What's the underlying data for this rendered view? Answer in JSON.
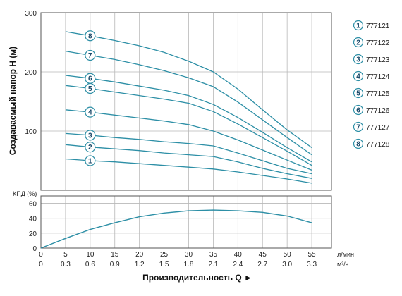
{
  "colors": {
    "curve": "#2d8fa6",
    "grid": "#b8b8b8",
    "frame": "#555555",
    "marker_ring": "#2d8fa6"
  },
  "chart_data": [
    {
      "type": "line",
      "ylabel": "Создаваемый напор H (м)",
      "x_unit": "л/мин",
      "xlim": [
        0,
        59
      ],
      "ylim": [
        0,
        300
      ],
      "x_ticks": [
        5,
        10,
        15,
        20,
        25,
        30,
        35,
        40,
        45,
        50,
        55
      ],
      "y_ticks": [
        100,
        200,
        300
      ],
      "grid": true,
      "x": [
        5,
        10,
        15,
        20,
        25,
        30,
        35,
        40,
        45,
        50,
        55
      ],
      "series": [
        {
          "name": "1",
          "values": [
            53,
            50,
            48,
            45,
            42,
            39,
            36,
            31,
            25,
            19,
            12
          ]
        },
        {
          "name": "2",
          "values": [
            77,
            73,
            70,
            67,
            63,
            60,
            57,
            48,
            37,
            28,
            20
          ]
        },
        {
          "name": "3",
          "values": [
            96,
            93,
            89,
            86,
            82,
            79,
            75,
            63,
            50,
            37,
            28
          ]
        },
        {
          "name": "4",
          "values": [
            136,
            132,
            127,
            122,
            117,
            111,
            100,
            85,
            68,
            51,
            34
          ]
        },
        {
          "name": "5",
          "values": [
            177,
            172,
            166,
            160,
            154,
            147,
            133,
            112,
            89,
            66,
            42
          ]
        },
        {
          "name": "6",
          "values": [
            194,
            189,
            183,
            176,
            169,
            160,
            145,
            123,
            98,
            72,
            48
          ]
        },
        {
          "name": "7",
          "values": [
            235,
            228,
            221,
            212,
            202,
            190,
            175,
            149,
            119,
            89,
            60
          ]
        },
        {
          "name": "8",
          "values": [
            268,
            261,
            253,
            244,
            233,
            218,
            200,
            171,
            136,
            102,
            72
          ]
        }
      ],
      "legend": {
        "placement": "right",
        "items": [
          {
            "num": "1",
            "label": "777121"
          },
          {
            "num": "2",
            "label": "777122"
          },
          {
            "num": "3",
            "label": "777123"
          },
          {
            "num": "4",
            "label": "777124"
          },
          {
            "num": "5",
            "label": "777125"
          },
          {
            "num": "6",
            "label": "777126"
          },
          {
            "num": "7",
            "label": "777127"
          },
          {
            "num": "8",
            "label": "777128"
          }
        ]
      },
      "curve_markers_x": 10
    },
    {
      "type": "line",
      "ylabel": "КПД (%)",
      "xlim": [
        0,
        59
      ],
      "ylim": [
        0,
        70
      ],
      "y_ticks": [
        0,
        20,
        40,
        60
      ],
      "grid": true,
      "x": [
        0,
        5,
        10,
        15,
        20,
        25,
        30,
        35,
        40,
        45,
        50,
        55
      ],
      "series": [
        {
          "values": [
            0,
            13,
            25,
            34,
            42,
            47,
            50,
            51,
            50,
            48,
            43,
            34
          ]
        }
      ],
      "x_axis_flow": {
        "unit": "л/мин",
        "ticks": [
          "0",
          "5",
          "10",
          "15",
          "20",
          "25",
          "30",
          "35",
          "40",
          "45",
          "50",
          "55"
        ],
        "positions": [
          0,
          5,
          10,
          15,
          20,
          25,
          30,
          35,
          40,
          45,
          50,
          55
        ]
      },
      "x_axis_m3h": {
        "unit": "м³/ч",
        "ticks": [
          "0",
          "0.3",
          "0.6",
          "0.9",
          "1.2",
          "1.5",
          "1.8",
          "2.1",
          "2.4",
          "2.7",
          "3.0",
          "3.3"
        ],
        "positions": [
          0,
          5,
          10,
          15,
          20,
          25,
          30,
          35,
          40,
          45,
          50,
          55
        ]
      },
      "xlabel": "Производительность Q ►"
    }
  ]
}
